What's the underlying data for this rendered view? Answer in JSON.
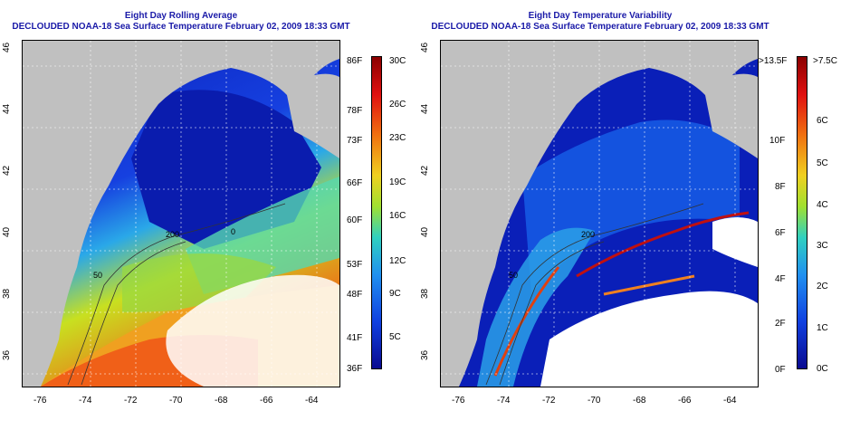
{
  "left_panel": {
    "title_line1": "Eight Day Rolling Average",
    "title_line2": "DECLOUDED NOAA-18 Sea Surface Temperature February 02, 2009 18:33 GMT",
    "colorbar_f": [
      "86F",
      "78F",
      "73F",
      "66F",
      "60F",
      "53F",
      "48F",
      "41F",
      "36F"
    ],
    "colorbar_c": [
      "30C",
      "26C",
      "23C",
      "19C",
      "16C",
      "12C",
      "9C",
      "5C"
    ],
    "contour_labels": [
      "200",
      "50",
      "0"
    ]
  },
  "right_panel": {
    "title_line1": "Eight Day Temperature Variability",
    "title_line2": "DECLOUDED NOAA-18 Sea Surface Temperature February 02, 2009 18:33 GMT",
    "colorbar_f": [
      ">13.5F",
      "10F",
      "8F",
      "6F",
      "4F",
      "2F",
      "0F"
    ],
    "colorbar_c": [
      ">7.5C",
      "6C",
      "5C",
      "4C",
      "3C",
      "2C",
      "1C",
      "0C"
    ],
    "contour_labels": [
      "200",
      "50"
    ]
  },
  "axes": {
    "x_ticks": [
      "-76",
      "-74",
      "-72",
      "-70",
      "-68",
      "-66",
      "-64"
    ],
    "y_ticks": [
      "46",
      "44",
      "42",
      "40",
      "38",
      "36"
    ]
  },
  "colors": {
    "title": "#1a1aa8",
    "land": "#c0c0c0",
    "cloud_mask": "#ffffff",
    "cold": "#0a1fb8",
    "warm": "#e8601a"
  }
}
